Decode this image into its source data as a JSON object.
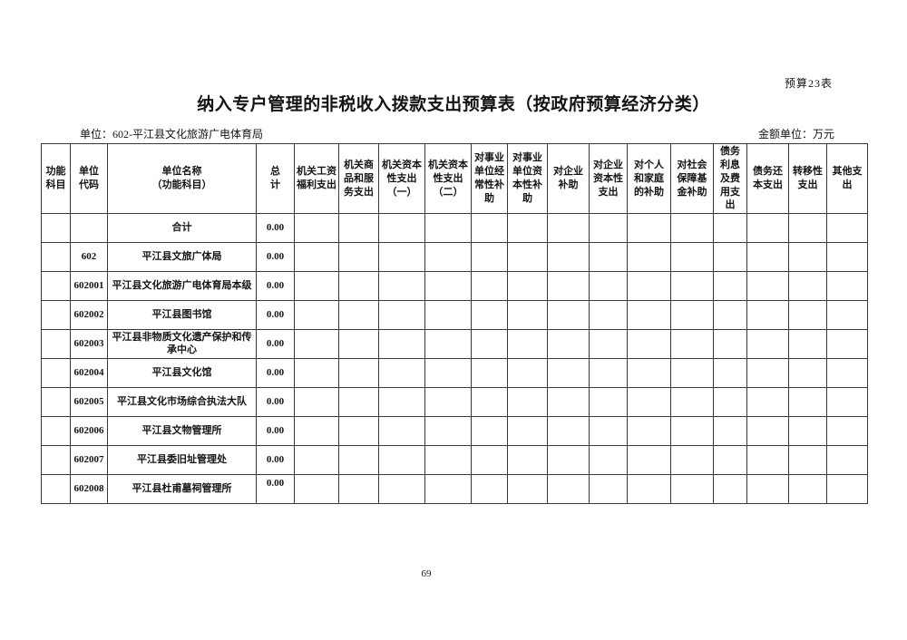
{
  "page": {
    "corner_label": "预算23表",
    "title": "纳入专户管理的非税收入拨款支出预算表（按政府预算经济分类）",
    "unit_label": "单位：602-平江县文化旅游广电体育局",
    "amount_unit_label": "金额单位：万元",
    "page_number": "69"
  },
  "table": {
    "headers": [
      "功能\n科目",
      "单位\n代码",
      "单位名称\n（功能科目）",
      "总　　计",
      "机关工资福利支出",
      "机关商品和服务支出",
      "机关资本性支出（一）",
      "机关资本性支出（二）",
      "对事业单位经常性补助",
      "对事业单位资本性补助",
      "对企业补助",
      "对企业资本性支出",
      "对个人和家庭的补助",
      "对社会保障基金补助",
      "债务利息及费用支出",
      "债务还本支出",
      "转移性支出",
      "其他支出"
    ],
    "empty_value_columns": 14,
    "rows": [
      {
        "func_code": "",
        "unit_code": "",
        "name": "合计",
        "total": "0.00"
      },
      {
        "func_code": "",
        "unit_code": "602",
        "name": "平江县文旅广体局",
        "total": "0.00"
      },
      {
        "func_code": "",
        "unit_code": "602001",
        "name": "平江县文化旅游广电体育局本级",
        "total": "0.00"
      },
      {
        "func_code": "",
        "unit_code": "602002",
        "name": "平江县图书馆",
        "total": "0.00"
      },
      {
        "func_code": "",
        "unit_code": "602003",
        "name": "平江县非物质文化遗产保护和传承中心",
        "total": "0.00"
      },
      {
        "func_code": "",
        "unit_code": "602004",
        "name": "平江县文化馆",
        "total": "0.00"
      },
      {
        "func_code": "",
        "unit_code": "602005",
        "name": "平江县文化市场综合执法大队",
        "total": "0.00"
      },
      {
        "func_code": "",
        "unit_code": "602006",
        "name": "平江县文物管理所",
        "total": "0.00"
      },
      {
        "func_code": "",
        "unit_code": "602007",
        "name": "平江县委旧址管理处",
        "total": "0.00"
      },
      {
        "func_code": "",
        "unit_code": "602008",
        "name": "平江县杜甫墓祠管理所",
        "total": "0.00"
      }
    ]
  }
}
